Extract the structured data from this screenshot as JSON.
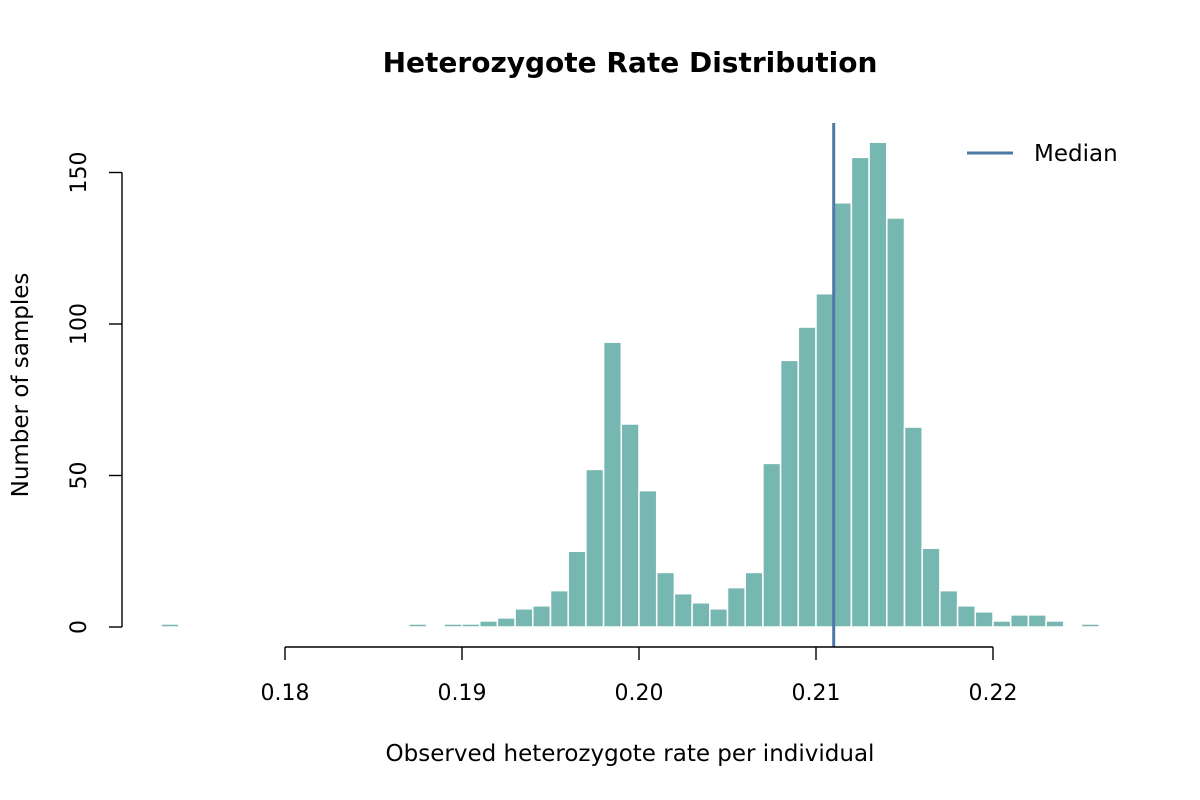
{
  "chart_data": {
    "type": "bar",
    "title": "Heterozygote Rate Distribution",
    "xlabel": "Observed heterozygote rate per individual",
    "ylabel": "Number of samples",
    "xlim": [
      0.1715,
      0.2265
    ],
    "ylim": [
      0,
      165
    ],
    "x_ticks": [
      "0.18",
      "0.19",
      "0.20",
      "0.21",
      "0.22"
    ],
    "y_ticks": [
      "0",
      "50",
      "100",
      "150"
    ],
    "bin_width": 0.001,
    "bins": [
      {
        "x0": 0.173,
        "x1": 0.174,
        "count": 1
      },
      {
        "x0": 0.187,
        "x1": 0.188,
        "count": 1
      },
      {
        "x0": 0.189,
        "x1": 0.19,
        "count": 1
      },
      {
        "x0": 0.19,
        "x1": 0.191,
        "count": 1
      },
      {
        "x0": 0.191,
        "x1": 0.192,
        "count": 2
      },
      {
        "x0": 0.192,
        "x1": 0.193,
        "count": 3
      },
      {
        "x0": 0.193,
        "x1": 0.194,
        "count": 6
      },
      {
        "x0": 0.194,
        "x1": 0.195,
        "count": 7
      },
      {
        "x0": 0.195,
        "x1": 0.196,
        "count": 12
      },
      {
        "x0": 0.196,
        "x1": 0.197,
        "count": 25
      },
      {
        "x0": 0.197,
        "x1": 0.198,
        "count": 52
      },
      {
        "x0": 0.198,
        "x1": 0.199,
        "count": 94
      },
      {
        "x0": 0.199,
        "x1": 0.2,
        "count": 67
      },
      {
        "x0": 0.2,
        "x1": 0.201,
        "count": 45
      },
      {
        "x0": 0.201,
        "x1": 0.202,
        "count": 18
      },
      {
        "x0": 0.202,
        "x1": 0.203,
        "count": 11
      },
      {
        "x0": 0.203,
        "x1": 0.204,
        "count": 8
      },
      {
        "x0": 0.204,
        "x1": 0.205,
        "count": 6
      },
      {
        "x0": 0.205,
        "x1": 0.206,
        "count": 13
      },
      {
        "x0": 0.206,
        "x1": 0.207,
        "count": 18
      },
      {
        "x0": 0.207,
        "x1": 0.208,
        "count": 54
      },
      {
        "x0": 0.208,
        "x1": 0.209,
        "count": 88
      },
      {
        "x0": 0.209,
        "x1": 0.21,
        "count": 99
      },
      {
        "x0": 0.21,
        "x1": 0.211,
        "count": 110
      },
      {
        "x0": 0.211,
        "x1": 0.212,
        "count": 140
      },
      {
        "x0": 0.212,
        "x1": 0.213,
        "count": 155
      },
      {
        "x0": 0.213,
        "x1": 0.214,
        "count": 160
      },
      {
        "x0": 0.214,
        "x1": 0.215,
        "count": 135
      },
      {
        "x0": 0.215,
        "x1": 0.216,
        "count": 66
      },
      {
        "x0": 0.216,
        "x1": 0.217,
        "count": 26
      },
      {
        "x0": 0.217,
        "x1": 0.218,
        "count": 12
      },
      {
        "x0": 0.218,
        "x1": 0.219,
        "count": 7
      },
      {
        "x0": 0.219,
        "x1": 0.22,
        "count": 5
      },
      {
        "x0": 0.22,
        "x1": 0.221,
        "count": 2
      },
      {
        "x0": 0.221,
        "x1": 0.222,
        "count": 4
      },
      {
        "x0": 0.222,
        "x1": 0.223,
        "count": 4
      },
      {
        "x0": 0.223,
        "x1": 0.224,
        "count": 2
      },
      {
        "x0": 0.225,
        "x1": 0.226,
        "count": 1
      }
    ],
    "median": 0.211,
    "legend": {
      "label": "Median",
      "position": "top-right"
    },
    "grid": false,
    "colors": {
      "bar": "#76b7b2",
      "bar_border": "#ffffff",
      "median_line": "#4e79a7",
      "axis": "#000000"
    }
  }
}
